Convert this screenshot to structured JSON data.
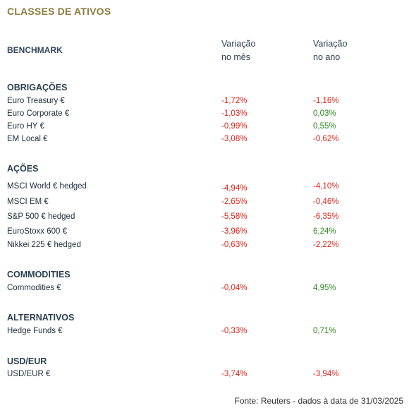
{
  "title": "CLASSES DE ATIVOS",
  "header": {
    "benchmark": "BENCHMARK",
    "col_month_line1": "Variação",
    "col_month_line2": "no mês",
    "col_year_line1": "Variação",
    "col_year_line2": "no ano"
  },
  "colors": {
    "negative": "#d9261c",
    "positive": "#2e8b1f",
    "title": "#8b7d3e"
  },
  "sections": [
    {
      "name": "OBRIGAÇÕES",
      "rows": [
        {
          "label": "Euro Treasury €",
          "month": "-1,72%",
          "year": "-1,16%"
        },
        {
          "label": "Euro Corporate €",
          "month": "-1,03%",
          "year": "0,03%"
        },
        {
          "label": "Euro HY €",
          "month": "-0,99%",
          "year": "0,55%"
        },
        {
          "label": "EM Local €",
          "month": "-3,08%",
          "year": "-0,62%"
        }
      ]
    },
    {
      "name": "AÇÕES",
      "rows": [
        {
          "label": "MSCI World € hedged",
          "month": "-4,94%",
          "year": "-4,10%"
        },
        {
          "label": "MSCI EM €",
          "month": "-2,65%",
          "year": "-0,46%"
        },
        {
          "label": "S&P 500 € hedged",
          "month": "-5,58%",
          "year": "-6,35%"
        },
        {
          "label": "EuroStoxx 600 €",
          "month": "-3,96%",
          "year": "6,24%"
        },
        {
          "label": "Nikkei 225 € hedged",
          "month": "-0,63%",
          "year": "-2,22%"
        }
      ]
    },
    {
      "name": "COMMODITIES",
      "rows": [
        {
          "label": "Commodities €",
          "month": "-0,04%",
          "year": "4,95%"
        }
      ]
    },
    {
      "name": "ALTERNATIVOS",
      "rows": [
        {
          "label": "Hedge Funds €",
          "month": "-0,33%",
          "year": "0,71%"
        }
      ]
    },
    {
      "name": "USD/EUR",
      "rows": [
        {
          "label": "USD/EUR €",
          "month": "-3,74%",
          "year": "-3,94%"
        }
      ]
    }
  ],
  "footer": "Fonte: Reuters - dados à data de 31/03/2025"
}
